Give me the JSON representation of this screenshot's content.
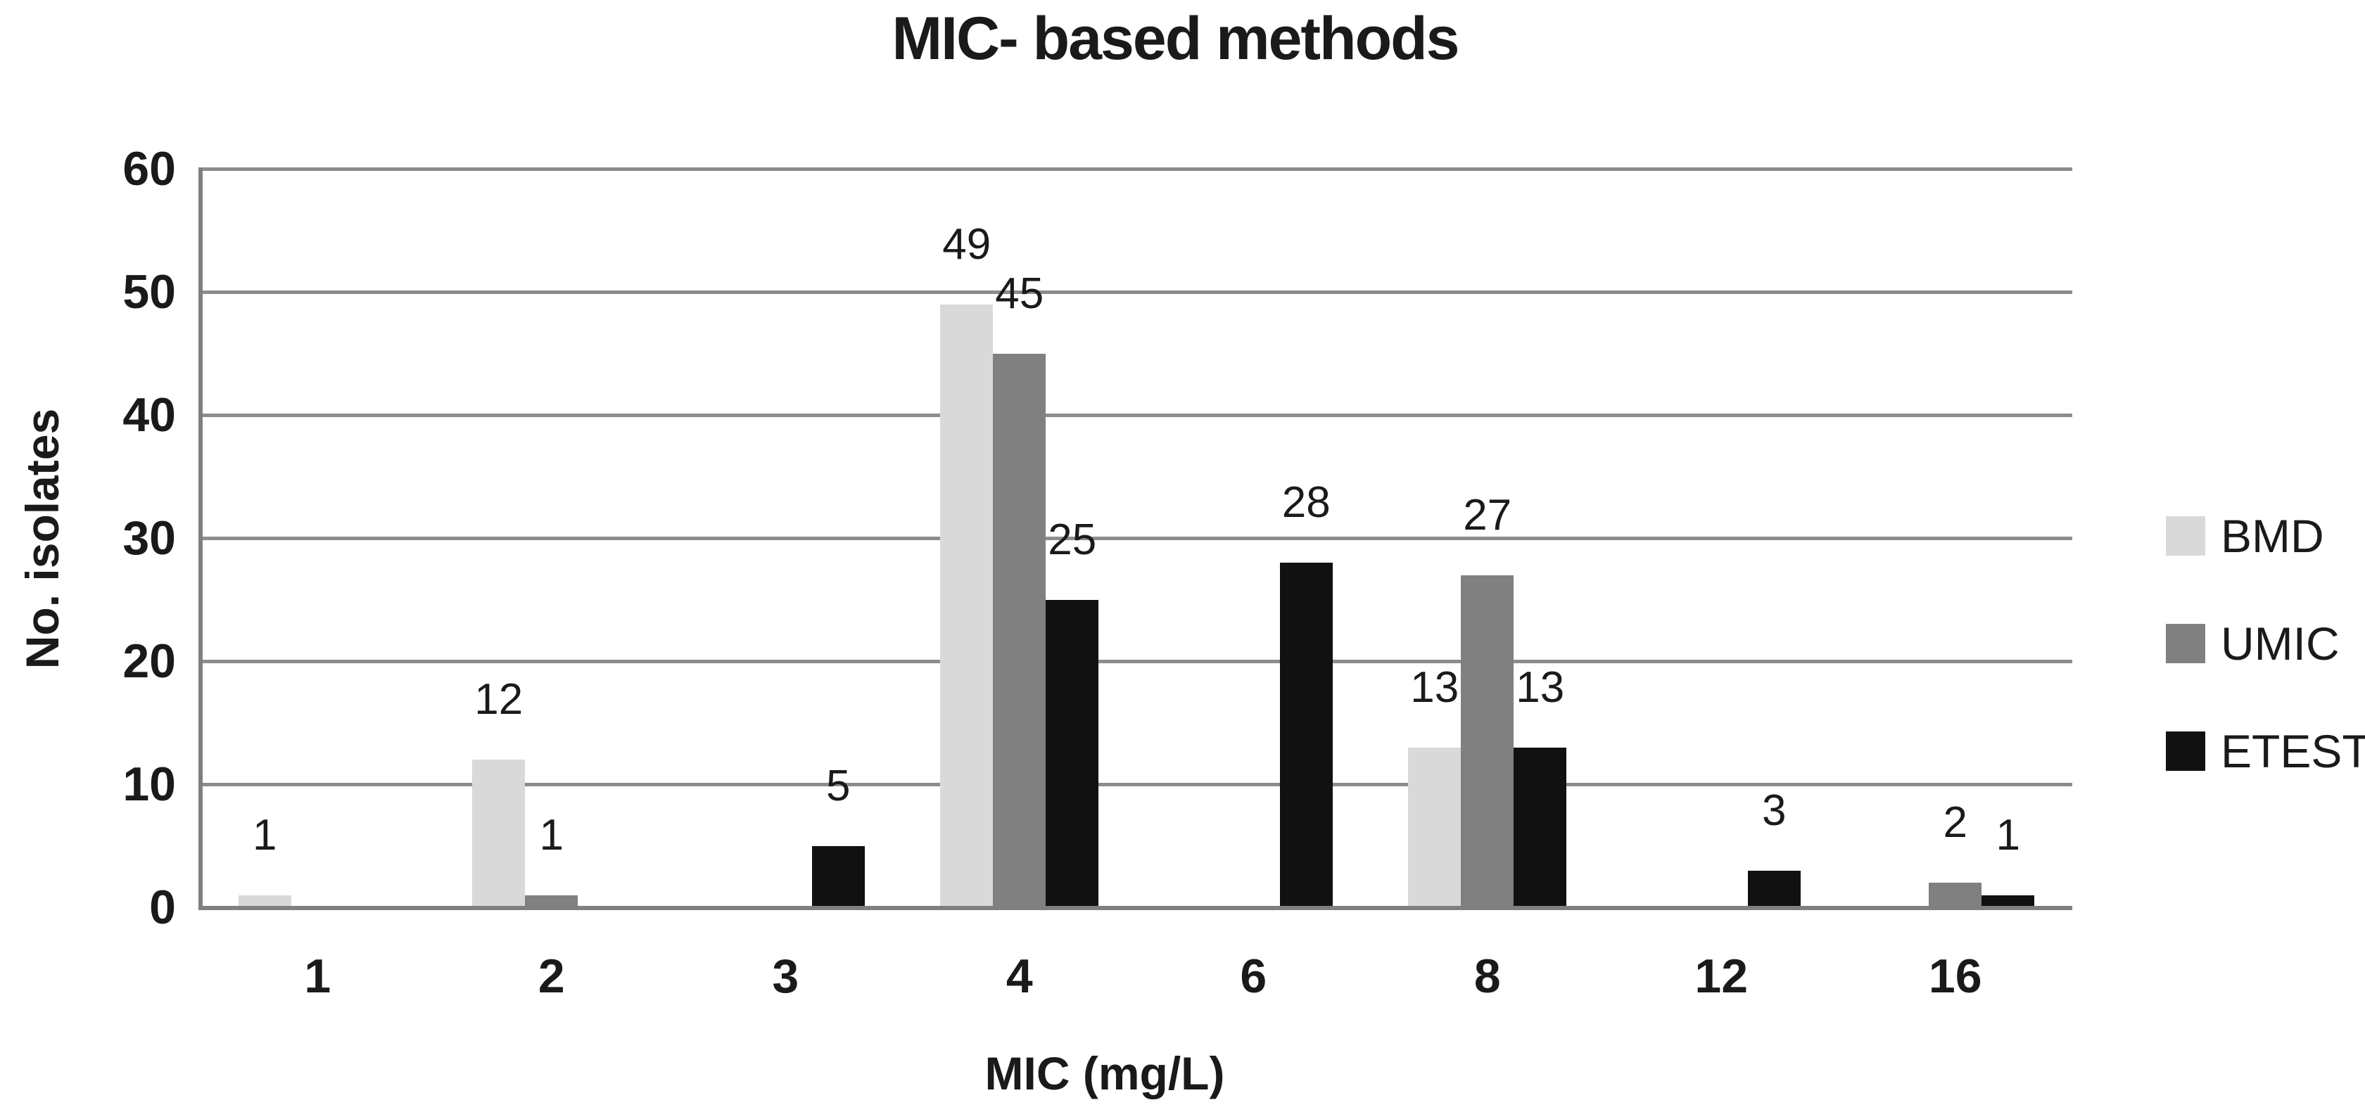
{
  "title": "MIC- based methods",
  "y_axis": {
    "label": "No. isolates",
    "tick_labels": [
      "60",
      "50",
      "40",
      "30",
      "20",
      "10",
      "0"
    ]
  },
  "x_axis": {
    "label": "MIC (mg/L)",
    "tick_labels": [
      "1",
      "2",
      "3",
      "4",
      "6",
      "8",
      "12",
      "16"
    ]
  },
  "legend": {
    "position": "right",
    "entries": [
      {
        "label": "BMD",
        "color": "#d9d9d9"
      },
      {
        "label": "UMIC",
        "color": "#808080"
      },
      {
        "label": "ETEST",
        "color": "#111111"
      }
    ]
  },
  "colors": {
    "gridline": "#8c8c8c",
    "axis_line": "#7f7f7f",
    "text": "#1a1a1a",
    "background": "#ffffff"
  },
  "chart_data": {
    "type": "bar",
    "title": "MIC- based methods",
    "xlabel": "MIC (mg/L)",
    "ylabel": "No. isolates",
    "ylim": [
      0,
      60
    ],
    "ytick_step": 10,
    "grid": true,
    "legend_position": "right",
    "data_labels": true,
    "categories": [
      "1",
      "2",
      "3",
      "4",
      "6",
      "8",
      "12",
      "16"
    ],
    "series": [
      {
        "name": "BMD",
        "color": "#d9d9d9",
        "values": [
          1,
          12,
          null,
          49,
          null,
          13,
          null,
          null
        ]
      },
      {
        "name": "UMIC",
        "color": "#808080",
        "values": [
          null,
          1,
          null,
          45,
          null,
          27,
          null,
          2
        ]
      },
      {
        "name": "ETEST",
        "color": "#111111",
        "values": [
          null,
          null,
          5,
          25,
          28,
          13,
          3,
          1
        ]
      }
    ]
  }
}
